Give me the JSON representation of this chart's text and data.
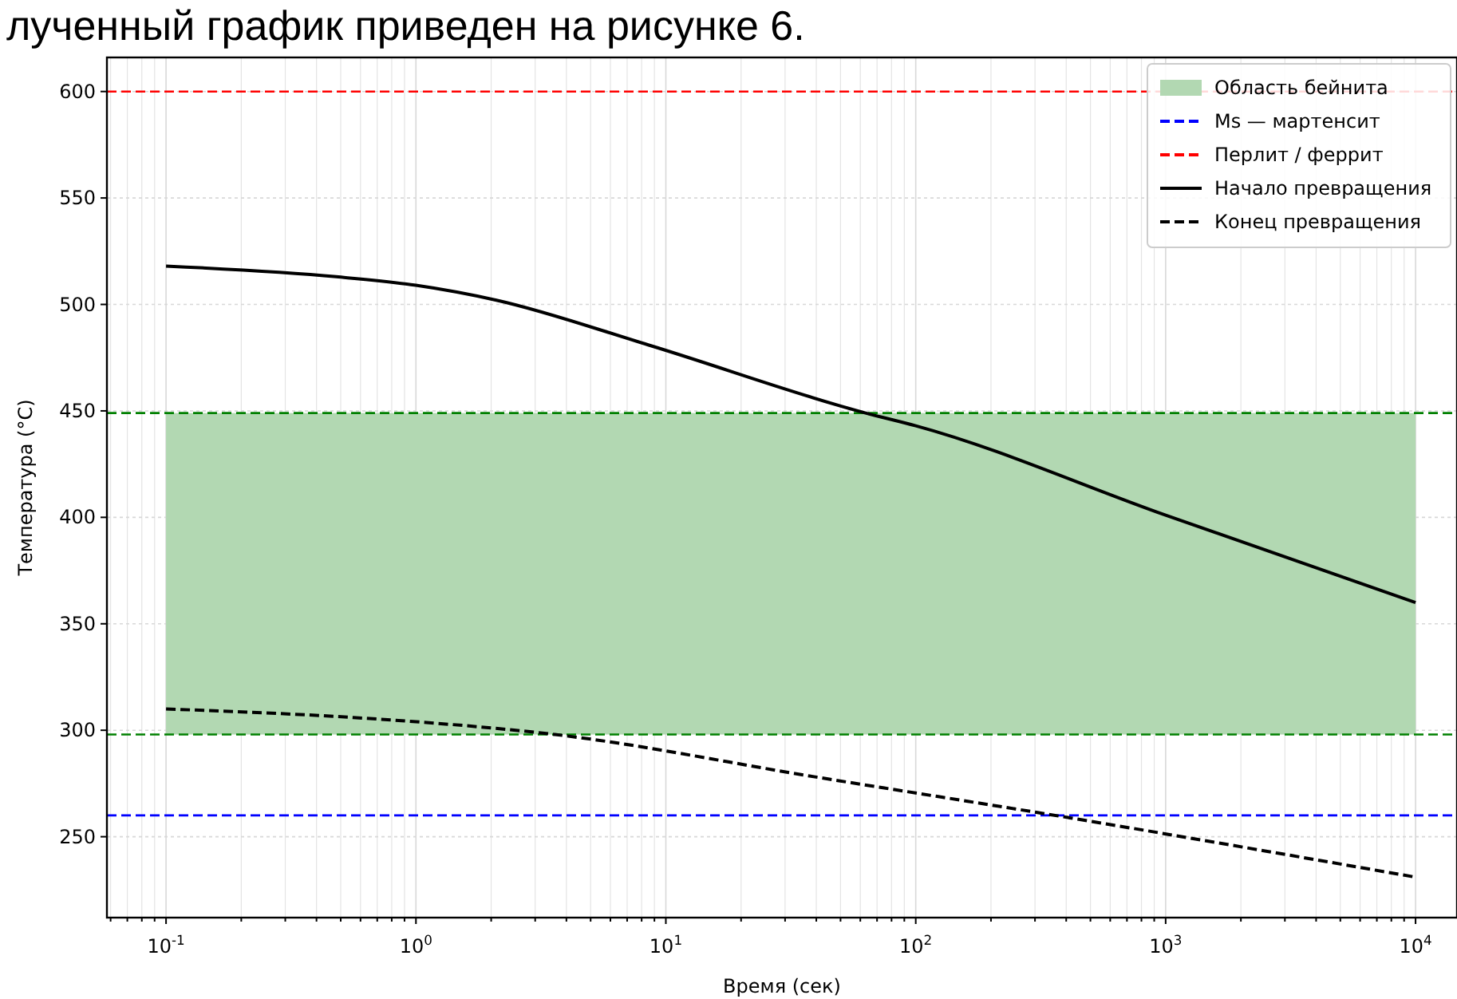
{
  "chart_data": {
    "type": "line",
    "annotations": [
      "лученный график приведен на рисунке 6."
    ],
    "xlabel": "Время (сек)",
    "ylabel": "Температура (°C)",
    "log": "x",
    "grid": true,
    "legend": "top right",
    "xlim": [
      0.058,
      14650
    ],
    "ylim": [
      212,
      616
    ],
    "xticks": [
      {
        "value": 0.1,
        "label": "10$^{-1}$"
      },
      {
        "value": 1,
        "label": "10$^{0}$"
      },
      {
        "value": 10,
        "label": "10$^{1}$"
      },
      {
        "value": 100,
        "label": "10$^{2}$"
      },
      {
        "value": 1000,
        "label": "10$^{3}$"
      },
      {
        "value": 10000,
        "label": "10$^{4}$"
      }
    ],
    "yticks": [
      250,
      300,
      350,
      400,
      450,
      500,
      550,
      600
    ],
    "series": [
      {
        "name": "Начало превращения",
        "color": "#000000",
        "line_style": "solid",
        "x": [
          0.1,
          0.48,
          1,
          2.1,
          8.5,
          63,
          100,
          1000,
          10000
        ],
        "values": [
          518,
          513,
          509,
          502,
          481,
          449,
          443,
          401,
          360
        ]
      },
      {
        "name": "Конец превращения",
        "color": "#000000",
        "line_style": "dashed",
        "x": [
          0.1,
          0.56,
          1,
          3.6,
          40,
          407,
          10000
        ],
        "values": [
          310,
          306,
          304,
          298,
          278,
          259,
          231
        ]
      }
    ],
    "bands": [
      {
        "axis": "y",
        "from": 298,
        "to": 449,
        "label": "Область бейнита",
        "color": "#b2d8b2"
      }
    ],
    "ref_lines": [
      {
        "axis": "y",
        "value": 260,
        "label": "Ms — мартенсит",
        "color": "#0000ff",
        "line_style": "dashed"
      },
      {
        "axis": "y",
        "value": 600,
        "label": "Перлит / феррит",
        "color": "#ff0000",
        "line_style": "dashed"
      },
      {
        "axis": "y",
        "value": 449,
        "color": "#008000",
        "line_style": "dashed"
      },
      {
        "axis": "y",
        "value": 298,
        "color": "#008000",
        "line_style": "dashed"
      }
    ]
  }
}
